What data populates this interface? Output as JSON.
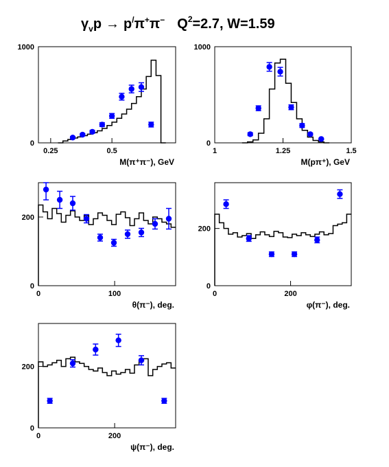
{
  "title": {
    "reaction_gamma": "γ",
    "reaction_v": "v",
    "reaction_p": "p",
    "arrow": "→",
    "p_prime": "p",
    "prime": "/",
    "pi": "π",
    "plus": "+",
    "minus": "−",
    "q": "Q",
    "q_exp": "2",
    "q_value": "=2.7, W=1.59"
  },
  "colors": {
    "data_points": "#0000ff",
    "histogram": "#000000",
    "axes": "#000000"
  },
  "chart_data": [
    {
      "type": "histogram_with_points",
      "panel": "m_pipi",
      "xlabel": "M(π⁺π⁻), GeV",
      "xlim": [
        0.2,
        0.76
      ],
      "ylim": [
        0,
        1000
      ],
      "xticks": [
        {
          "v": 0.25,
          "label": "0.25"
        },
        {
          "v": 0.5,
          "label": "0.5"
        }
      ],
      "yticks": [
        {
          "v": 0,
          "label": "0"
        },
        {
          "v": 1000,
          "label": "1000"
        }
      ],
      "histogram": {
        "start": 0.28,
        "width": 0.02,
        "values": [
          0,
          20,
          35,
          50,
          62,
          75,
          90,
          105,
          125,
          150,
          180,
          215,
          255,
          300,
          350,
          410,
          480,
          560,
          690,
          860,
          700,
          0
        ]
      },
      "points": [
        {
          "x": 0.34,
          "y": 55,
          "err": 10
        },
        {
          "x": 0.38,
          "y": 85,
          "err": 12
        },
        {
          "x": 0.42,
          "y": 115,
          "err": 15
        },
        {
          "x": 0.46,
          "y": 190,
          "err": 20
        },
        {
          "x": 0.5,
          "y": 280,
          "err": 25
        },
        {
          "x": 0.54,
          "y": 480,
          "err": 35
        },
        {
          "x": 0.58,
          "y": 560,
          "err": 40
        },
        {
          "x": 0.62,
          "y": 580,
          "err": 45
        },
        {
          "x": 0.66,
          "y": 190,
          "err": 25
        }
      ]
    },
    {
      "type": "histogram_with_points",
      "panel": "m_ppi",
      "xlabel": "M(pπ⁺), GeV",
      "xlim": [
        1.0,
        1.5
      ],
      "ylim": [
        0,
        1000
      ],
      "xticks": [
        {
          "v": 1.0,
          "label": "1"
        },
        {
          "v": 1.25,
          "label": "1.25"
        },
        {
          "v": 1.5,
          "label": "1.5"
        }
      ],
      "yticks": [
        {
          "v": 0,
          "label": "0"
        },
        {
          "v": 1000,
          "label": "1000"
        }
      ],
      "histogram": {
        "start": 1.1,
        "width": 0.02,
        "values": [
          0,
          10,
          30,
          100,
          250,
          560,
          830,
          870,
          620,
          420,
          250,
          130,
          60,
          25,
          10,
          0
        ]
      },
      "points": [
        {
          "x": 1.13,
          "y": 90,
          "err": 15
        },
        {
          "x": 1.16,
          "y": 360,
          "err": 25
        },
        {
          "x": 1.2,
          "y": 790,
          "err": 45
        },
        {
          "x": 1.24,
          "y": 740,
          "err": 45
        },
        {
          "x": 1.28,
          "y": 370,
          "err": 25
        },
        {
          "x": 1.32,
          "y": 180,
          "err": 20
        },
        {
          "x": 1.35,
          "y": 90,
          "err": 12
        },
        {
          "x": 1.39,
          "y": 40,
          "err": 8
        }
      ]
    },
    {
      "type": "histogram_with_points",
      "panel": "theta",
      "xlabel": "θ(π⁻), deg.",
      "xlim": [
        0,
        180
      ],
      "ylim": [
        0,
        300
      ],
      "xticks": [
        {
          "v": 0,
          "label": "0"
        },
        {
          "v": 100,
          "label": "100"
        }
      ],
      "yticks": [
        {
          "v": 0,
          "label": "0"
        },
        {
          "v": 200,
          "label": "200"
        }
      ],
      "histogram": {
        "start": 0,
        "width": 6,
        "values": [
          235,
          215,
          195,
          225,
          210,
          185,
          205,
          218,
          200,
          190,
          205,
          178,
          195,
          212,
          205,
          190,
          178,
          208,
          215,
          198,
          175,
          195,
          212,
          190,
          180,
          200,
          195,
          185,
          180,
          170
        ]
      },
      "points": [
        {
          "x": 10,
          "y": 280,
          "err": 30
        },
        {
          "x": 28,
          "y": 250,
          "err": 25
        },
        {
          "x": 45,
          "y": 240,
          "err": 20
        },
        {
          "x": 63,
          "y": 195,
          "err": 12
        },
        {
          "x": 81,
          "y": 140,
          "err": 10
        },
        {
          "x": 99,
          "y": 125,
          "err": 10
        },
        {
          "x": 117,
          "y": 150,
          "err": 12
        },
        {
          "x": 135,
          "y": 155,
          "err": 12
        },
        {
          "x": 153,
          "y": 180,
          "err": 15
        },
        {
          "x": 171,
          "y": 195,
          "err": 30
        }
      ]
    },
    {
      "type": "histogram_with_points",
      "panel": "phi",
      "xlabel": "φ(π⁻), deg.",
      "xlim": [
        0,
        360
      ],
      "ylim": [
        0,
        360
      ],
      "xticks": [
        {
          "v": 0,
          "label": "0"
        },
        {
          "v": 200,
          "label": "200"
        }
      ],
      "yticks": [
        {
          "v": 0,
          "label": "0"
        },
        {
          "v": 200,
          "label": "200"
        }
      ],
      "histogram": {
        "start": 0,
        "width": 12,
        "values": [
          250,
          220,
          200,
          180,
          185,
          170,
          175,
          182,
          165,
          178,
          188,
          178,
          172,
          190,
          185,
          170,
          168,
          180,
          175,
          185,
          178,
          172,
          180,
          188,
          178,
          182,
          210,
          215,
          220,
          250
        ]
      },
      "points": [
        {
          "x": 30,
          "y": 285,
          "err": 15
        },
        {
          "x": 90,
          "y": 165,
          "err": 10
        },
        {
          "x": 150,
          "y": 110,
          "err": 8
        },
        {
          "x": 210,
          "y": 110,
          "err": 8
        },
        {
          "x": 270,
          "y": 160,
          "err": 10
        },
        {
          "x": 330,
          "y": 320,
          "err": 15
        }
      ]
    },
    {
      "type": "histogram_with_points",
      "panel": "psi",
      "xlabel": "ψ(π⁻), deg.",
      "xlim": [
        0,
        360
      ],
      "ylim": [
        0,
        340
      ],
      "xticks": [
        {
          "v": 0,
          "label": "0"
        },
        {
          "v": 200,
          "label": "200"
        }
      ],
      "yticks": [
        {
          "v": 0,
          "label": "0"
        },
        {
          "v": 200,
          "label": "200"
        }
      ],
      "histogram": {
        "start": 0,
        "width": 12,
        "values": [
          215,
          200,
          205,
          212,
          220,
          200,
          225,
          230,
          215,
          210,
          200,
          190,
          185,
          195,
          180,
          170,
          185,
          175,
          180,
          190,
          178,
          205,
          218,
          225,
          170,
          190,
          200,
          208,
          212,
          195
        ]
      },
      "points": [
        {
          "x": 30,
          "y": 88,
          "err": 8
        },
        {
          "x": 90,
          "y": 210,
          "err": 12
        },
        {
          "x": 150,
          "y": 255,
          "err": 18
        },
        {
          "x": 210,
          "y": 285,
          "err": 20
        },
        {
          "x": 270,
          "y": 220,
          "err": 15
        },
        {
          "x": 330,
          "y": 88,
          "err": 8
        }
      ]
    }
  ]
}
